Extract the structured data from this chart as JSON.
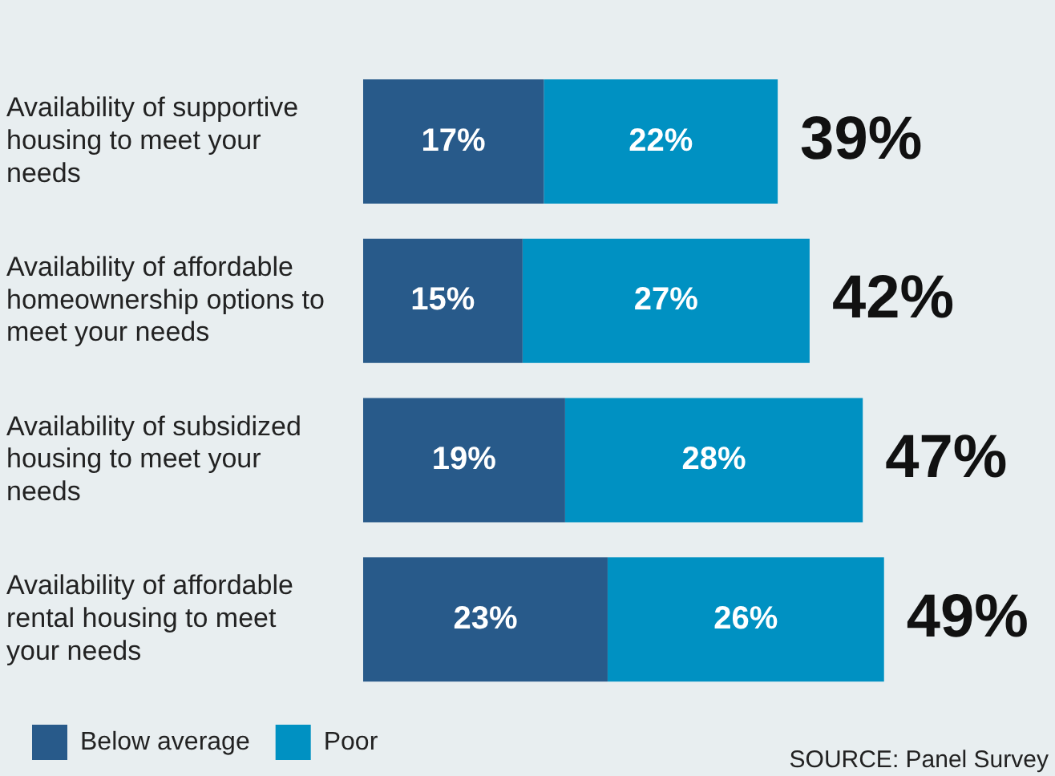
{
  "chart_data": {
    "type": "bar",
    "orientation": "horizontal",
    "stacked": true,
    "categories": [
      "Availability of supportive housing to meet your needs",
      "Availability of affordable homeownership options to meet your needs",
      "Availability of subsidized housing to meet your needs",
      "Availability of affordable rental housing to meet your needs"
    ],
    "series": [
      {
        "name": "Below average",
        "color": "#285a8a",
        "values": [
          17,
          15,
          19,
          23
        ],
        "value_labels": [
          "17%",
          "15%",
          "19%",
          "23%"
        ]
      },
      {
        "name": "Poor",
        "color": "#0091c2",
        "values": [
          22,
          27,
          28,
          26
        ],
        "value_labels": [
          "22%",
          "27%",
          "28%",
          "26%"
        ]
      }
    ],
    "totals": [
      "39%",
      "42%",
      "47%",
      "49%"
    ],
    "legend": "bottom left",
    "annotations": [
      "SOURCE: Panel Survey"
    ]
  }
}
